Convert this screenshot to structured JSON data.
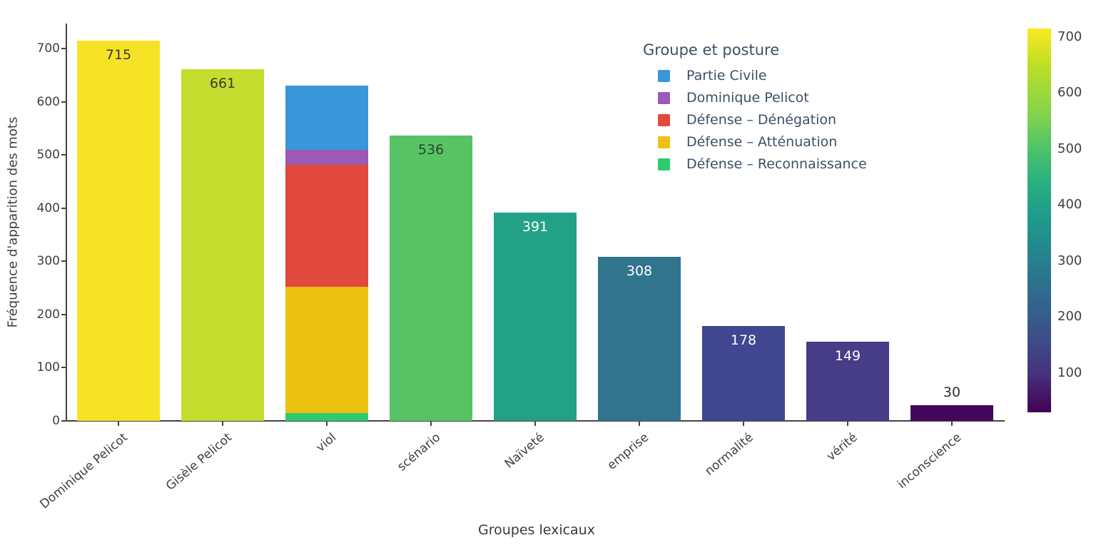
{
  "chart_data": {
    "type": "bar",
    "title": "",
    "xlabel": "Groupes lexicaux",
    "ylabel": "Fréquence d'apparition des mots",
    "ylim": [
      0,
      750
    ],
    "yticks": [
      0,
      100,
      200,
      300,
      400,
      500,
      600,
      700
    ],
    "grid": false,
    "legend_position": "inside-top-right",
    "categories": [
      "Dominique Pelicot",
      "Gisèle Pelicot",
      "viol",
      "scénario",
      "Naïveté",
      "emprise",
      "normalité",
      "vérité",
      "inconscience"
    ],
    "bars": [
      {
        "category": "Dominique Pelicot",
        "value": 715,
        "label": "715",
        "color": "#f6e326",
        "label_color": "#3a3a28",
        "label_inside": true
      },
      {
        "category": "Gisèle Pelicot",
        "value": 661,
        "label": "661",
        "color": "#c5dd2f",
        "label_color": "#3a3a28",
        "label_inside": true
      },
      {
        "category": "viol",
        "value": 630,
        "label": "",
        "color": "stacked",
        "label_color": "#3a3a28",
        "label_inside": true,
        "stacked": true
      },
      {
        "category": "scénario",
        "value": 536,
        "label": "536",
        "color": "#57c365",
        "label_color": "#28442e",
        "label_inside": true
      },
      {
        "category": "Naïveté",
        "value": 391,
        "label": "391",
        "color": "#23a186",
        "label_color": "#ffffff",
        "label_inside": true
      },
      {
        "category": "emprise",
        "value": 308,
        "label": "308",
        "color": "#31748e",
        "label_color": "#ffffff",
        "label_inside": true
      },
      {
        "category": "normalité",
        "value": 178,
        "label": "178",
        "color": "#40468f",
        "label_color": "#ffffff",
        "label_inside": true
      },
      {
        "category": "vérité",
        "value": 149,
        "label": "149",
        "color": "#463c88",
        "label_color": "#ffffff",
        "label_inside": true
      },
      {
        "category": "inconscience",
        "value": 30,
        "label": "30",
        "color": "#45075c",
        "label_color": "#2d2d2d",
        "label_inside": false
      }
    ],
    "stacked_bar": {
      "category": "viol",
      "segments_bottom_to_top": [
        {
          "name": "Défense – Reconnaissance",
          "value": 15,
          "color": "#2dcb70"
        },
        {
          "name": "Défense – Atténuation",
          "value": 237,
          "color": "#edc111"
        },
        {
          "name": "Défense – Dénégation",
          "value": 230,
          "color": "#e2483d"
        },
        {
          "name": "Dominique Pelicot",
          "value": 28,
          "color": "#9c59b5"
        },
        {
          "name": "Partie Civile",
          "value": 120,
          "color": "#3a96d9"
        }
      ]
    },
    "legend": {
      "title": "Groupe et posture",
      "items": [
        {
          "label": "Partie Civile",
          "color": "#3a96d9"
        },
        {
          "label": "Dominique Pelicot",
          "color": "#9c59b5"
        },
        {
          "label": "Défense – Dénégation",
          "color": "#e2483d"
        },
        {
          "label": "Défense – Atténuation",
          "color": "#edc111"
        },
        {
          "label": "Défense – Reconnaissance",
          "color": "#2dcb70"
        }
      ]
    },
    "colorbar": {
      "min": 30,
      "max": 715,
      "ticks": [
        100,
        200,
        300,
        400,
        500,
        600,
        700
      ],
      "colormap": "viridis"
    }
  }
}
